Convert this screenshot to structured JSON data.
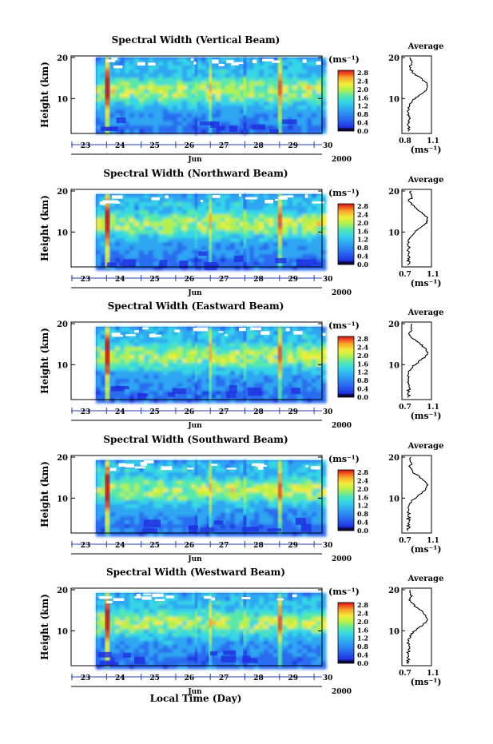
{
  "figure": {
    "xlabel_global": "Local Time (Day)",
    "month": "Jun",
    "year": "2000",
    "cb_unit": "(ms⁻¹)",
    "avg_title": "Average",
    "avg_xlabel": "(ms⁻¹)",
    "ylabel": "Height (km)"
  },
  "chart_data": [
    {
      "type": "heatmap",
      "title": "Spectral Width (Vertical Beam)",
      "xlabel": "Jun",
      "ylabel": "Height (km)",
      "x_ticks": [
        "23",
        "24",
        "25",
        "26",
        "27",
        "28",
        "29",
        "30"
      ],
      "y_ticks": [
        10,
        20
      ],
      "ylim": [
        1.5,
        20
      ],
      "colorbar": {
        "label": "(ms⁻¹)",
        "ticks": [
          "2.8",
          "2.4",
          "2.0",
          "1.6",
          "1.2",
          "0.8",
          "0.4",
          "0.0"
        ],
        "range": [
          0.0,
          2.8
        ]
      },
      "average_profile": {
        "title": "Average",
        "xlabel": "(ms⁻¹)",
        "x_ticks": [
          "0.8",
          "1.1"
        ],
        "y_ticks": [
          10,
          20
        ]
      }
    },
    {
      "type": "heatmap",
      "title": "Spectral Width (Northward Beam)",
      "xlabel": "Jun",
      "ylabel": "Height (km)",
      "x_ticks": [
        "23",
        "24",
        "25",
        "26",
        "27",
        "28",
        "29",
        "30"
      ],
      "y_ticks": [
        10,
        20
      ],
      "ylim": [
        1.5,
        20
      ],
      "colorbar": {
        "label": "(ms⁻¹)",
        "ticks": [
          "2.8",
          "2.4",
          "2.0",
          "1.6",
          "1.2",
          "0.8",
          "0.4",
          "0.0"
        ],
        "range": [
          0.0,
          2.8
        ]
      },
      "average_profile": {
        "title": "Average",
        "xlabel": "(ms⁻¹)",
        "x_ticks": [
          "0.7",
          "1.1"
        ],
        "y_ticks": [
          10,
          20
        ]
      }
    },
    {
      "type": "heatmap",
      "title": "Spectral Width (Eastward Beam)",
      "xlabel": "Jun",
      "ylabel": "Height (km)",
      "x_ticks": [
        "23",
        "24",
        "25",
        "26",
        "27",
        "28",
        "29",
        "30"
      ],
      "y_ticks": [
        10,
        20
      ],
      "ylim": [
        1.5,
        20
      ],
      "colorbar": {
        "label": "(ms⁻¹)",
        "ticks": [
          "2.8",
          "2.4",
          "2.0",
          "1.6",
          "1.2",
          "0.8",
          "0.4",
          "0.0"
        ],
        "range": [
          0.0,
          2.8
        ]
      },
      "average_profile": {
        "title": "Average",
        "xlabel": "(ms⁻¹)",
        "x_ticks": [
          "0.7",
          "1.1"
        ],
        "y_ticks": [
          10,
          20
        ]
      }
    },
    {
      "type": "heatmap",
      "title": "Spectral Width (Southward Beam)",
      "xlabel": "Jun",
      "ylabel": "Height (km)",
      "x_ticks": [
        "23",
        "24",
        "25",
        "26",
        "27",
        "28",
        "29",
        "30"
      ],
      "y_ticks": [
        10,
        20
      ],
      "ylim": [
        1.5,
        20
      ],
      "colorbar": {
        "label": "(ms⁻¹)",
        "ticks": [
          "2.8",
          "2.4",
          "2.0",
          "1.6",
          "1.2",
          "0.8",
          "0.4",
          "0.0"
        ],
        "range": [
          0.0,
          2.8
        ]
      },
      "average_profile": {
        "title": "Average",
        "xlabel": "(ms⁻¹)",
        "x_ticks": [
          "0.7",
          "1.1"
        ],
        "y_ticks": [
          10,
          20
        ]
      }
    },
    {
      "type": "heatmap",
      "title": "Spectral Width (Westward Beam)",
      "xlabel": "Jun",
      "ylabel": "Height (km)",
      "x_ticks": [
        "23",
        "24",
        "25",
        "26",
        "27",
        "28",
        "29",
        "30"
      ],
      "y_ticks": [
        10,
        20
      ],
      "ylim": [
        1.5,
        20
      ],
      "colorbar": {
        "label": "(ms⁻¹)",
        "ticks": [
          "2.8",
          "2.4",
          "2.0",
          "1.6",
          "1.2",
          "0.8",
          "0.4",
          "0.0"
        ],
        "range": [
          0.0,
          2.8
        ]
      },
      "average_profile": {
        "title": "Average",
        "xlabel": "(ms⁻¹)",
        "x_ticks": [
          "0.7",
          "1.1"
        ],
        "y_ticks": [
          10,
          20
        ]
      }
    }
  ],
  "colors": {
    "colormap": [
      "#0a0a3c",
      "#1f2fe0",
      "#2a6cf0",
      "#2fa6f2",
      "#35d6e6",
      "#58e8a8",
      "#b6f04a",
      "#f2ec3a",
      "#f7a52a",
      "#ee4b1c",
      "#c8141a"
    ]
  }
}
